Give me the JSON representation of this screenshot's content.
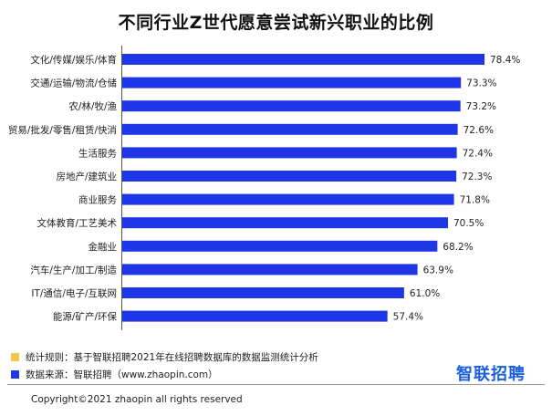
{
  "title": "不同行业Z世代愿意尝试新兴职业的比例",
  "colors": {
    "bar": "#1f36e6",
    "note1_square": "#f2c84b",
    "note2_square": "#1f36e6",
    "logo": "#1a5fe0"
  },
  "notes": {
    "rule": "统计规则：基于智联招聘2021年在线招聘数据库的数据监测统计分析",
    "source": "数据来源：智联招聘（www.zhaopin.com）"
  },
  "logo_text": "智联招聘",
  "copyright": "Copyright©2021 zhaopin  all rights reserved",
  "chart_data": {
    "type": "bar",
    "orientation": "horizontal",
    "categories": [
      "文化/传媒/娱乐/体育",
      "交通/运输/物流/仓储",
      "农/林/牧/渔",
      "贸易/批发/零售/租赁/快消",
      "生活服务",
      "房地产/建筑业",
      "商业服务",
      "文体教育/工艺美术",
      "金融业",
      "汽车/生产/加工/制造",
      "IT/通信/电子/互联网",
      "能源/矿产/环保"
    ],
    "values": [
      78.4,
      73.3,
      73.2,
      72.6,
      72.4,
      72.3,
      71.8,
      70.5,
      68.2,
      63.9,
      61.0,
      57.4
    ],
    "value_labels": [
      "78.4%",
      "73.3%",
      "73.2%",
      "72.6%",
      "72.4%",
      "72.3%",
      "71.8%",
      "70.5%",
      "68.2%",
      "63.9%",
      "61.0%",
      "57.4%"
    ],
    "xlim": [
      0,
      78.4
    ],
    "grid": false,
    "legend": "none"
  }
}
